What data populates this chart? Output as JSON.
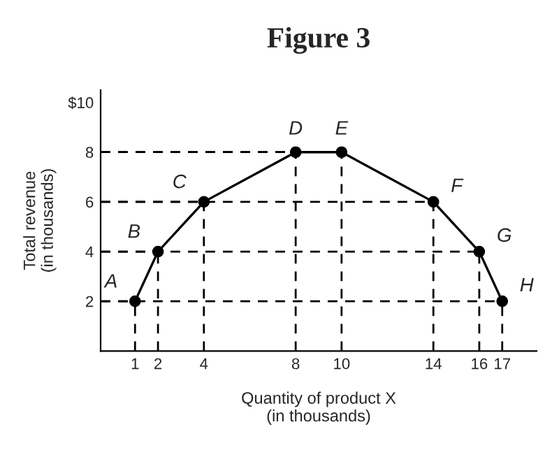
{
  "chart_data": {
    "type": "line",
    "title": "Figure 3",
    "xlabel": "Quantity of product X\n(in thousands)",
    "ylabel": "Total revenue\n(in thousands)",
    "x": [
      1,
      2,
      4,
      8,
      10,
      14,
      16,
      17
    ],
    "series": [
      {
        "color": "#000000",
        "values": [
          2,
          4,
          6,
          8,
          8,
          6,
          4,
          2
        ]
      }
    ],
    "marker": "circle",
    "xlim": [
      -0.5,
      18.5
    ],
    "xticks": [
      1,
      2,
      4,
      8,
      10,
      14,
      16,
      17
    ],
    "ylim": [
      0,
      10.5
    ],
    "yticks": [
      2,
      4,
      6,
      8,
      {
        "value": 10,
        "label": "$10"
      }
    ],
    "annotations": [
      {
        "text": "A",
        "x": 1,
        "y": 2
      },
      {
        "text": "B",
        "x": 2,
        "y": 4
      },
      {
        "text": "C",
        "x": 4,
        "y": 6
      },
      {
        "text": "D",
        "x": 8,
        "y": 8
      },
      {
        "text": "E",
        "x": 10,
        "y": 8
      },
      {
        "text": "F",
        "x": 14,
        "y": 6
      },
      {
        "text": "G",
        "x": 16,
        "y": 4
      },
      {
        "text": "H",
        "x": 17,
        "y": 2
      }
    ],
    "grid": true,
    "legend": false
  }
}
